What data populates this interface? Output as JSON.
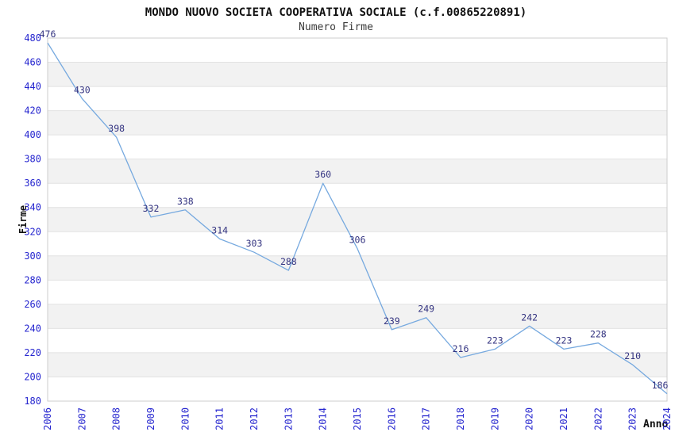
{
  "chart_data": {
    "type": "line",
    "title": "MONDO NUOVO SOCIETA COOPERATIVA SOCIALE (c.f.00865220891)",
    "subtitle": "Numero Firme",
    "xlabel": "Anno",
    "ylabel": "Firme",
    "x": [
      2006,
      2007,
      2008,
      2009,
      2010,
      2011,
      2012,
      2013,
      2014,
      2015,
      2016,
      2017,
      2018,
      2019,
      2020,
      2021,
      2022,
      2023,
      2024
    ],
    "values": [
      476,
      430,
      398,
      332,
      338,
      314,
      303,
      288,
      360,
      306,
      239,
      249,
      216,
      223,
      242,
      223,
      228,
      210,
      186
    ],
    "ylim": [
      180,
      480
    ],
    "ytick_step": 20,
    "grid": true,
    "legend": "none",
    "point_labels_shown": true,
    "colors": {
      "line": "#76a9df",
      "tick_label": "#2626cf",
      "point_label": "#333380",
      "band": "#f2f2f2",
      "gridline": "#e2e2e2",
      "border": "#cccccc",
      "background": "#ffffff"
    }
  }
}
